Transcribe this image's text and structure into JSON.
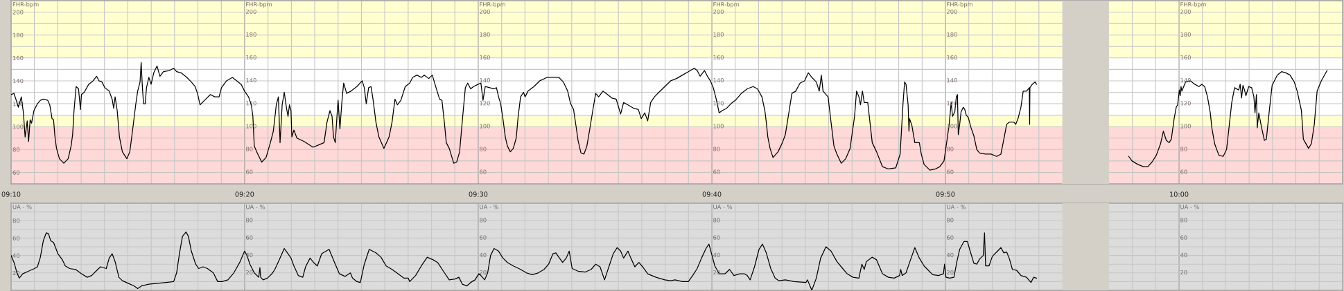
{
  "chart_data": [
    {
      "type": "line",
      "ylabel": "FHR-bpm",
      "grid": true,
      "xlim": [
        9.1667,
        10.1167
      ],
      "xticks": [
        {
          "value": 9.1667,
          "label": "09:10"
        },
        {
          "value": 9.1833,
          "label": null
        },
        {
          "value": 9.2,
          "label": null
        },
        {
          "value": 9.2167,
          "label": null
        },
        {
          "value": 9.2333,
          "label": null
        },
        {
          "value": 9.25,
          "label": null
        },
        {
          "value": 9.2667,
          "label": null
        },
        {
          "value": 9.2833,
          "label": null
        },
        {
          "value": 9.3,
          "label": null
        },
        {
          "value": 9.3167,
          "label": null
        },
        {
          "value": 9.3333,
          "label": "09:20"
        },
        {
          "value": 9.35,
          "label": null
        },
        {
          "value": 9.3667,
          "label": null
        },
        {
          "value": 9.3833,
          "label": null
        },
        {
          "value": 9.4,
          "label": null
        },
        {
          "value": 9.4167,
          "label": null
        },
        {
          "value": 9.4333,
          "label": null
        },
        {
          "value": 9.45,
          "label": null
        },
        {
          "value": 9.4667,
          "label": null
        },
        {
          "value": 9.4833,
          "label": null
        },
        {
          "value": 9.5,
          "label": "09:30"
        },
        {
          "value": 9.5167,
          "label": null
        },
        {
          "value": 9.5333,
          "label": null
        },
        {
          "value": 9.55,
          "label": null
        },
        {
          "value": 9.5667,
          "label": null
        },
        {
          "value": 9.5833,
          "label": null
        },
        {
          "value": 9.6,
          "label": null
        },
        {
          "value": 9.6167,
          "label": null
        },
        {
          "value": 9.6333,
          "label": null
        },
        {
          "value": 9.65,
          "label": null
        },
        {
          "value": 9.6667,
          "label": "09:40"
        },
        {
          "value": 9.6833,
          "label": null
        },
        {
          "value": 9.7,
          "label": null
        },
        {
          "value": 9.7167,
          "label": null
        },
        {
          "value": 9.7333,
          "label": null
        },
        {
          "value": 9.75,
          "label": null
        },
        {
          "value": 9.7667,
          "label": null
        },
        {
          "value": 9.7833,
          "label": null
        },
        {
          "value": 9.8,
          "label": null
        },
        {
          "value": 9.8167,
          "label": null
        },
        {
          "value": 9.8333,
          "label": "09:50"
        },
        {
          "value": 9.85,
          "label": null
        },
        {
          "value": 9.8667,
          "label": null
        },
        {
          "value": 9.8833,
          "label": null
        },
        {
          "value": 9.9,
          "label": null
        },
        {
          "value": 9.9667,
          "label": null
        },
        {
          "value": 9.9833,
          "label": null
        },
        {
          "value": 10,
          "label": "10:00"
        },
        {
          "value": 10.0167,
          "label": null
        },
        {
          "value": 10.0333,
          "label": null
        },
        {
          "value": 10.05,
          "label": null
        },
        {
          "value": 10.0667,
          "label": null
        },
        {
          "value": 10.0833,
          "label": null
        },
        {
          "value": 10.1,
          "label": null
        }
      ],
      "ylim": [
        50,
        210
      ],
      "yticks": [
        60,
        {
          "value": 70,
          "label": null
        },
        80,
        {
          "value": 90,
          "label": null
        },
        100,
        {
          "value": 110,
          "label": null
        },
        120,
        {
          "value": 130,
          "label": null
        },
        140,
        {
          "value": 150,
          "label": null
        },
        160,
        {
          "value": 170,
          "label": null
        },
        180,
        {
          "value": 190,
          "label": null
        },
        200
      ],
      "bands": [
        {
          "axis": "y",
          "from": 160,
          "to": 210,
          "color": "#ffffd0"
        },
        {
          "axis": "y",
          "from": 100,
          "to": 110,
          "color": "#ffffd0"
        },
        {
          "axis": "y",
          "from": 50,
          "to": 100,
          "color": "#ffd8d8"
        },
        {
          "axis": "x",
          "from": 9.9167,
          "to": 9.95,
          "color": "#d4d0c8"
        }
      ],
      "annotations": [
        "FHR-bpm",
        "200",
        "180",
        "160",
        "140",
        "120",
        "100",
        "80",
        "60",
        "FHR-bpm",
        "200",
        "180",
        "160",
        "140",
        "120",
        "100",
        "80",
        "60",
        "FHR-bpm",
        "200",
        "180",
        "160",
        "140",
        "120",
        "100",
        "80",
        "60",
        "FHR-bpm",
        "200",
        "180",
        "160",
        "140",
        "120",
        "100",
        "80",
        "60",
        "FHR-bpm",
        "200",
        "180",
        "160",
        "140",
        "120",
        "100",
        "80",
        "60"
      ],
      "x": [
        9.1667,
        9.1688,
        9.1719,
        9.174,
        9.1755,
        9.1767,
        9.1782,
        9.1792,
        9.1803,
        9.1813,
        9.183,
        9.1855,
        9.1876,
        9.1897,
        9.1928,
        9.1943,
        9.1959,
        9.197,
        9.198,
        9.1991,
        9.2012,
        9.2043,
        9.2074,
        9.2095,
        9.2106,
        9.2116,
        9.2131,
        9.2148,
        9.2162,
        9.2169,
        9.2189,
        9.2221,
        9.2252,
        9.2277,
        9.2294,
        9.2315,
        9.2336,
        9.2367,
        9.2388,
        9.2399,
        9.2409,
        9.2424,
        9.244,
        9.2461,
        9.2493,
        9.2514,
        9.2535,
        9.2556,
        9.257,
        9.2587,
        9.2595,
        9.2604,
        9.2612,
        9.2624,
        9.2633,
        9.265,
        9.2666,
        9.2685,
        9.2708,
        9.2729,
        9.2754,
        9.2796,
        9.2827,
        9.2848,
        9.288,
        9.2921,
        9.2953,
        9.298,
        9.2997,
        9.3015,
        9.3047,
        9.3089,
        9.312,
        9.3151,
        9.3168,
        9.3204,
        9.3246,
        9.3277,
        9.3308,
        9.3333,
        9.3361,
        9.3381,
        9.3392,
        9.3402,
        9.3423,
        9.3455,
        9.3486,
        9.3517,
        9.3538,
        9.3559,
        9.3574,
        9.3586,
        9.3601,
        9.3616,
        9.3632,
        9.3643,
        9.3653,
        9.3664,
        9.367,
        9.3685,
        9.3706,
        9.3758,
        9.3821,
        9.3862,
        9.39,
        9.3921,
        9.3942,
        9.3957,
        9.3967,
        9.398,
        9.3992,
        9.4,
        9.4013,
        9.403,
        9.404,
        9.4061,
        9.4092,
        9.4134,
        9.4172,
        9.4187,
        9.4201,
        9.4218,
        9.4235,
        9.4249,
        9.427,
        9.4291,
        9.4327,
        9.4364,
        9.4385,
        9.4406,
        9.4423,
        9.4448,
        9.4479,
        9.4511,
        9.4532,
        9.4563,
        9.4594,
        9.4615,
        9.4647,
        9.4672,
        9.4699,
        9.4724,
        9.4741,
        9.4758,
        9.4772,
        9.4793,
        9.4825,
        9.4846,
        9.4867,
        9.4887,
        9.4908,
        9.4925,
        9.4946,
        9.4966,
        9.5,
        9.5019,
        9.5034,
        9.505,
        9.5082,
        9.5113,
        9.513,
        9.5145,
        9.516,
        9.5176,
        9.5193,
        9.5208,
        9.5229,
        9.525,
        9.5271,
        9.5285,
        9.5302,
        9.5323,
        9.5334,
        9.5355,
        9.5397,
        9.5439,
        9.5491,
        9.5533,
        9.5575,
        9.5607,
        9.5638,
        9.5659,
        9.568,
        9.5697,
        9.5712,
        9.5733,
        9.5754,
        9.5775,
        9.5796,
        9.5817,
        9.5838,
        9.5859,
        9.589,
        9.5922,
        9.5953,
        9.5984,
        9.6016,
        9.6037,
        9.6068,
        9.611,
        9.6142,
        9.6163,
        9.6188,
        9.6209,
        9.623,
        9.6257,
        9.6289,
        9.6331,
        9.6373,
        9.6415,
        9.6457,
        9.6499,
        9.6541,
        9.6562,
        9.6583,
        9.6614,
        9.6635,
        9.6656,
        9.6677,
        9.6698,
        9.6719,
        9.674,
        9.6772,
        9.6803,
        9.6835,
        9.6877,
        9.6919,
        9.6961,
        9.6992,
        9.7024,
        9.7045,
        9.7055,
        9.7066,
        9.7082,
        9.7103,
        9.7139,
        9.717,
        9.7191,
        9.7212,
        9.7238,
        9.7265,
        9.7296,
        9.7328,
        9.7355,
        9.738,
        9.7412,
        9.7433,
        9.7448,
        9.746,
        9.7496,
        9.7517,
        9.7538,
        9.7559,
        9.759,
        9.7622,
        9.7653,
        9.7685,
        9.7699,
        9.7716,
        9.7727,
        9.7741,
        9.7754,
        9.7779,
        9.7811,
        9.7842,
        9.7884,
        9.7926,
        9.7979,
        9.801,
        9.8031,
        9.8042,
        9.8052,
        9.8067,
        9.8073,
        9.8077,
        9.8094,
        9.8115,
        9.8147,
        9.8161,
        9.8181,
        9.8222,
        9.8262,
        9.8293,
        9.8323,
        9.8343,
        9.836,
        9.8374,
        9.8384,
        9.84,
        9.8411,
        9.8419,
        9.8425,
        9.8435,
        9.8445,
        9.8461,
        9.8471,
        9.8482,
        9.8496,
        9.8516,
        9.8536,
        9.8557,
        9.8577,
        9.8618,
        9.8658,
        9.8699,
        9.8729,
        9.875,
        9.877,
        9.879,
        9.8821,
        9.8835,
        9.8851,
        9.8872,
        9.8888,
        9.8912,
        9.8932,
        9.8934,
        9.8936,
        9.8953,
        9.8973,
        9.8983,
        9.9333,
        9.9641,
        9.9665,
        9.9706,
        9.9746,
        9.9777,
        9.9807,
        9.9838,
        9.9868,
        9.9888,
        9.9909,
        9.9929,
        9.9945,
        9.9965,
        9.998,
        9.999,
        10.0002,
        10.0008,
        10.0014,
        10.002,
        10.0047,
        10.0081,
        10.0112,
        10.0142,
        10.0162,
        10.0183,
        10.0203,
        10.0223,
        10.0234,
        10.0254,
        10.0284,
        10.0315,
        10.0339,
        10.0359,
        10.0376,
        10.0396,
        10.0426,
        10.0436,
        10.0446,
        10.0456,
        10.0467,
        10.0477,
        10.0497,
        10.0518,
        10.0534,
        10.0542,
        10.0552,
        10.0558,
        10.0569,
        10.0589,
        10.0609,
        10.0623,
        10.0644,
        10.0664,
        10.0701,
        10.0731,
        10.0762,
        10.0792,
        10.0822,
        10.0843,
        10.0873,
        10.0887,
        10.0924,
        10.0944,
        10.0965,
        10.0985,
        10.1015,
        10.1056
      ],
      "series": [
        {
          "color": "#000000",
          "values": [
            128,
            129,
            117,
            126,
            112,
            91,
            105,
            87,
            106,
            103,
            114,
            120,
            123,
            124,
            123,
            119,
            107,
            106,
            91,
            81,
            72,
            68,
            72,
            83,
            93,
            114,
            135,
            133,
            115,
            128,
            130,
            137,
            140,
            144,
            140,
            139,
            134,
            131,
            124,
            116,
            126,
            114,
            91,
            78,
            72,
            78,
            98,
            119,
            131,
            139,
            156,
            134,
            120,
            120,
            134,
            143,
            137,
            147,
            153,
            144,
            148,
            149,
            151,
            148,
            147,
            143,
            139,
            135,
            129,
            119,
            123,
            128,
            126,
            126,
            134,
            140,
            143,
            140,
            137,
            131,
            126,
            119,
            109,
            83,
            77,
            69,
            73,
            86,
            96,
            119,
            126,
            86,
            119,
            130,
            116,
            109,
            119,
            114,
            91,
            97,
            90,
            87,
            82,
            84,
            86,
            104,
            114,
            109,
            91,
            86,
            109,
            123,
            98,
            126,
            138,
            129,
            131,
            135,
            140,
            134,
            120,
            134,
            135,
            124,
            104,
            91,
            81,
            91,
            104,
            124,
            119,
            123,
            135,
            138,
            143,
            145,
            143,
            145,
            142,
            145,
            134,
            124,
            123,
            104,
            86,
            81,
            68,
            69,
            78,
            106,
            134,
            138,
            133,
            135,
            137,
            138,
            123,
            135,
            134,
            133,
            134,
            126,
            120,
            107,
            91,
            83,
            78,
            81,
            90,
            109,
            126,
            130,
            126,
            131,
            135,
            140,
            143,
            143,
            143,
            139,
            131,
            120,
            115,
            101,
            88,
            77,
            76,
            83,
            98,
            114,
            129,
            126,
            131,
            128,
            125,
            124,
            111,
            121,
            119,
            116,
            115,
            107,
            112,
            105,
            121,
            126,
            130,
            135,
            140,
            142,
            145,
            148,
            151,
            149,
            144,
            149,
            144,
            140,
            134,
            124,
            112,
            114,
            116,
            120,
            123,
            129,
            133,
            135,
            133,
            126,
            114,
            104,
            91,
            81,
            73,
            78,
            86,
            93,
            109,
            129,
            131,
            138,
            140,
            147,
            143,
            139,
            131,
            145,
            131,
            126,
            104,
            83,
            76,
            68,
            72,
            81,
            109,
            131,
            126,
            119,
            131,
            121,
            121,
            86,
            78,
            65,
            63,
            64,
            76,
            121,
            139,
            137,
            119,
            96,
            107,
            101,
            86,
            86,
            76,
            67,
            62,
            63,
            65,
            70,
            87,
            102,
            121,
            109,
            113,
            126,
            128,
            93,
            102,
            113,
            117,
            115,
            110,
            108,
            99,
            92,
            80,
            77,
            76,
            76,
            74,
            76,
            89,
            102,
            104,
            104,
            102,
            107,
            117,
            131,
            131,
            134,
            102,
            134,
            137,
            139,
            137,
            null,
            74,
            70,
            67,
            65,
            65,
            69,
            75,
            85,
            96,
            88,
            86,
            89,
            107,
            117,
            119,
            132,
            127,
            135,
            131,
            139,
            140,
            137,
            135,
            137,
            135,
            126,
            112,
            99,
            85,
            75,
            74,
            80,
            102,
            121,
            134,
            132,
            137,
            125,
            136,
            132,
            127,
            135,
            134,
            126,
            112,
            128,
            99,
            112,
            99,
            88,
            89,
            114,
            136,
            145,
            148,
            147,
            145,
            139,
            131,
            114,
            89,
            81,
            85,
            102,
            131,
            140,
            149
          ]
        }
      ]
    },
    {
      "type": "line",
      "ylabel": "UA - %",
      "grid": true,
      "tick_labels": "y",
      "xlim": [
        9.1667,
        10.1167
      ],
      "xticks": [
        {
          "value": 9.1667,
          "label": null
        },
        {
          "value": 9.1833,
          "label": null
        },
        {
          "value": 9.2,
          "label": null
        },
        {
          "value": 9.2167,
          "label": null
        },
        {
          "value": 9.2333,
          "label": null
        },
        {
          "value": 9.25,
          "label": null
        },
        {
          "value": 9.2667,
          "label": null
        },
        {
          "value": 9.2833,
          "label": null
        },
        {
          "value": 9.3,
          "label": null
        },
        {
          "value": 9.3167,
          "label": null
        },
        {
          "value": 9.3333,
          "label": null
        },
        {
          "value": 9.35,
          "label": null
        },
        {
          "value": 9.3667,
          "label": null
        },
        {
          "value": 9.3833,
          "label": null
        },
        {
          "value": 9.4,
          "label": null
        },
        {
          "value": 9.4167,
          "label": null
        },
        {
          "value": 9.4333,
          "label": null
        },
        {
          "value": 9.45,
          "label": null
        },
        {
          "value": 9.4667,
          "label": null
        },
        {
          "value": 9.4833,
          "label": null
        },
        {
          "value": 9.5,
          "label": null
        },
        {
          "value": 9.5167,
          "label": null
        },
        {
          "value": 9.5333,
          "label": null
        },
        {
          "value": 9.55,
          "label": null
        },
        {
          "value": 9.5667,
          "label": null
        },
        {
          "value": 9.5833,
          "label": null
        },
        {
          "value": 9.6,
          "label": null
        },
        {
          "value": 9.6167,
          "label": null
        },
        {
          "value": 9.6333,
          "label": null
        },
        {
          "value": 9.65,
          "label": null
        },
        {
          "value": 9.6667,
          "label": null
        },
        {
          "value": 9.6833,
          "label": null
        },
        {
          "value": 9.7,
          "label": null
        },
        {
          "value": 9.7167,
          "label": null
        },
        {
          "value": 9.7333,
          "label": null
        },
        {
          "value": 9.75,
          "label": null
        },
        {
          "value": 9.7667,
          "label": null
        },
        {
          "value": 9.7833,
          "label": null
        },
        {
          "value": 9.8,
          "label": null
        },
        {
          "value": 9.8167,
          "label": null
        },
        {
          "value": 9.8333,
          "label": null
        },
        {
          "value": 9.85,
          "label": null
        },
        {
          "value": 9.8667,
          "label": null
        },
        {
          "value": 9.8833,
          "label": null
        },
        {
          "value": 9.9,
          "label": null
        },
        {
          "value": 9.9667,
          "label": null
        },
        {
          "value": 9.9833,
          "label": null
        },
        {
          "value": 10,
          "label": null
        },
        {
          "value": 10.0167,
          "label": null
        },
        {
          "value": 10.0333,
          "label": null
        },
        {
          "value": 10.05,
          "label": null
        },
        {
          "value": 10.0667,
          "label": null
        },
        {
          "value": 10.0833,
          "label": null
        },
        {
          "value": 10.1,
          "label": null
        }
      ],
      "ylim": [
        0,
        100
      ],
      "yticks": [
        {
          "value": 10,
          "label": null
        },
        20,
        {
          "value": 30,
          "label": null
        },
        40,
        {
          "value": 50,
          "label": null
        },
        60,
        {
          "value": 70,
          "label": null
        },
        80,
        {
          "value": 90,
          "label": null
        }
      ],
      "bands": [
        {
          "axis": "x",
          "from": 9.9167,
          "to": 9.95,
          "color": "#d4d0c8"
        }
      ],
      "annotations": [
        "UA - %",
        "80",
        "60",
        "40",
        "20",
        "UA - %",
        "80",
        "60",
        "40",
        "20",
        "UA - %",
        "80",
        "60",
        "40",
        "20",
        "UA - %",
        "80",
        "60",
        "40",
        "20",
        "UA - %",
        "80",
        "60",
        "40",
        "20"
      ],
      "x": [
        9.1667,
        9.1688,
        9.1709,
        9.1725,
        9.175,
        9.1792,
        9.1834,
        9.1855,
        9.1876,
        9.1897,
        9.1918,
        9.1934,
        9.1949,
        9.197,
        9.2001,
        9.2033,
        9.2054,
        9.2085,
        9.2127,
        9.2169,
        9.221,
        9.2242,
        9.2273,
        9.2305,
        9.2346,
        9.2367,
        9.2388,
        9.2409,
        9.2436,
        9.2461,
        9.2503,
        9.2545,
        9.257,
        9.2597,
        9.265,
        9.2712,
        9.2775,
        9.2827,
        9.2848,
        9.2869,
        9.289,
        9.2915,
        9.2932,
        9.2953,
        9.2984,
        9.3005,
        9.3036,
        9.3068,
        9.311,
        9.3141,
        9.3172,
        9.3214,
        9.3256,
        9.3298,
        9.3333,
        9.335,
        9.3371,
        9.3402,
        9.3434,
        9.3442,
        9.3448,
        9.3465,
        9.3496,
        9.3528,
        9.3549,
        9.358,
        9.3616,
        9.3643,
        9.3664,
        9.3685,
        9.3716,
        9.3748,
        9.3768,
        9.38,
        9.3825,
        9.3852,
        9.3883,
        9.3936,
        9.3967,
        9.4009,
        9.4051,
        9.4088,
        9.4103,
        9.4134,
        9.4159,
        9.4187,
        9.4222,
        9.427,
        9.4306,
        9.4343,
        9.4385,
        9.4427,
        9.4469,
        9.45,
        9.4511,
        9.4553,
        9.4594,
        9.4636,
        9.4678,
        9.471,
        9.4751,
        9.4793,
        9.4835,
        9.4862,
        9.4887,
        9.4918,
        9.4946,
        9.4977,
        9.5004,
        9.5019,
        9.5046,
        9.5067,
        9.5088,
        9.5113,
        9.5145,
        9.5176,
        9.5208,
        9.525,
        9.5302,
        9.5344,
        9.5386,
        9.5428,
        9.547,
        9.5502,
        9.5533,
        9.5554,
        9.5575,
        9.5602,
        9.5628,
        9.5649,
        9.567,
        9.5712,
        9.5764,
        9.5806,
        9.5838,
        9.5869,
        9.5901,
        9.5932,
        9.5963,
        9.5991,
        9.6016,
        9.6037,
        9.6068,
        9.6089,
        9.6117,
        9.6146,
        9.6173,
        9.6209,
        9.6268,
        9.6331,
        9.6373,
        9.6404,
        9.6457,
        9.6499,
        9.653,
        9.6562,
        9.6593,
        9.6625,
        9.6646,
        9.6663,
        9.6688,
        9.6719,
        9.6761,
        9.6793,
        9.6824,
        9.6866,
        9.6898,
        9.6919,
        9.694,
        9.6971,
        9.7003,
        9.7028,
        9.7055,
        9.7087,
        9.7118,
        9.7145,
        9.7191,
        9.7254,
        9.7338,
        9.7349,
        9.738,
        9.7412,
        9.7443,
        9.7481,
        9.7517,
        9.7559,
        9.759,
        9.7632,
        9.7674,
        9.7716,
        9.7737,
        9.7754,
        9.7769,
        9.7811,
        9.7842,
        9.7884,
        9.7926,
        9.7968,
        9.8006,
        9.8014,
        9.8025,
        9.8052,
        9.8084,
        9.8115,
        9.8147,
        9.8181,
        9.8211,
        9.8242,
        9.8283,
        9.8319,
        9.8327,
        9.8337,
        9.8364,
        9.8394,
        9.8415,
        9.8435,
        9.8465,
        9.849,
        9.8506,
        9.8536,
        9.8557,
        9.8577,
        9.8603,
        9.8612,
        9.862,
        9.8644,
        9.8668,
        9.8699,
        9.8729,
        9.875,
        9.877,
        9.879,
        9.8811,
        9.8841,
        9.8872,
        9.8912,
        9.8943,
        9.8963,
        9.8983
      ],
      "series": [
        {
          "color": "#000000",
          "values": [
            40,
            32,
            20,
            14,
            19,
            22,
            25,
            27,
            38,
            57,
            66,
            65,
            57,
            55,
            42,
            35,
            28,
            25,
            24,
            19,
            15,
            17,
            22,
            27,
            25,
            37,
            42,
            33,
            15,
            11,
            8,
            5,
            2,
            5,
            7,
            8,
            9,
            10,
            20,
            43,
            62,
            67,
            62,
            45,
            30,
            25,
            27,
            25,
            20,
            10,
            10,
            12,
            20,
            32,
            45,
            40,
            30,
            20,
            15,
            26,
            15,
            12,
            14,
            19,
            24,
            35,
            48,
            42,
            37,
            28,
            17,
            15,
            27,
            37,
            32,
            28,
            42,
            47,
            35,
            19,
            16,
            20,
            14,
            10,
            9,
            30,
            47,
            43,
            38,
            28,
            24,
            19,
            14,
            14,
            10,
            17,
            28,
            38,
            35,
            32,
            22,
            12,
            13,
            15,
            7,
            5,
            9,
            12,
            19,
            17,
            12,
            20,
            40,
            48,
            45,
            37,
            32,
            28,
            24,
            20,
            18,
            20,
            24,
            30,
            42,
            43,
            38,
            32,
            37,
            45,
            25,
            22,
            21,
            24,
            30,
            27,
            12,
            27,
            42,
            49,
            45,
            37,
            45,
            37,
            27,
            32,
            27,
            19,
            15,
            12,
            11,
            12,
            10,
            10,
            17,
            25,
            37,
            48,
            53,
            43,
            28,
            19,
            19,
            24,
            17,
            19,
            19,
            17,
            12,
            27,
            47,
            53,
            43,
            25,
            14,
            11,
            12,
            10,
            9,
            12,
            0,
            14,
            37,
            50,
            45,
            33,
            27,
            19,
            15,
            14,
            30,
            24,
            33,
            38,
            35,
            19,
            15,
            14,
            17,
            24,
            17,
            20,
            35,
            49,
            37,
            28,
            23,
            18,
            17,
            19,
            30,
            15,
            14,
            15,
            33,
            47,
            56,
            56,
            47,
            31,
            30,
            36,
            40,
            66,
            28,
            28,
            39,
            44,
            49,
            43,
            44,
            36,
            24,
            23,
            17,
            15,
            9,
            15,
            14
          ]
        }
      ]
    }
  ]
}
